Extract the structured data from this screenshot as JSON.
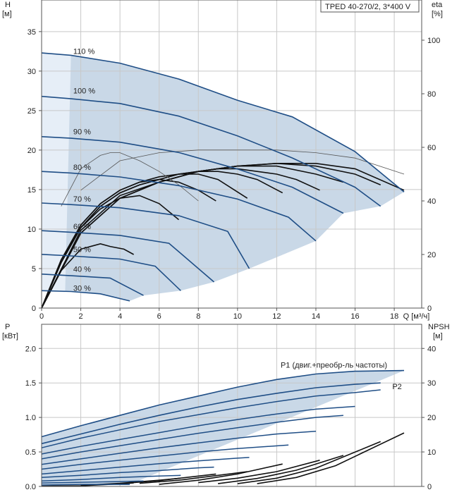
{
  "chart_data": [
    {
      "type": "line",
      "title": "TPED 40-270/2, 3*400 V",
      "xlabel": "Q [м³/ч]",
      "ylabel": "H",
      "ylabel_unit": "[м]",
      "y2label": "eta",
      "y2label_unit": "[%]",
      "xlim": [
        0,
        19.4
      ],
      "ylim": [
        0,
        39
      ],
      "y2lim": [
        0,
        115
      ],
      "x_ticks": [
        "0",
        "2",
        "4",
        "6",
        "8",
        "10",
        "12",
        "14",
        "16",
        "18"
      ],
      "y_ticks": [
        "0",
        "5",
        "10",
        "15",
        "20",
        "25",
        "30",
        "35"
      ],
      "y2_ticks": [
        "0",
        "20",
        "40",
        "60",
        "80",
        "100"
      ],
      "grid": true,
      "speed_curves": [
        {
          "name": "110 %",
          "label_pos": [
            1.4,
            32.0
          ],
          "x": [
            0,
            1.5,
            4,
            7,
            10,
            12.8,
            16,
            18.5
          ],
          "y": [
            32.3,
            32.0,
            31.0,
            29.0,
            26.3,
            24.2,
            19.8,
            14.7
          ]
        },
        {
          "name": "100 %",
          "label_pos": [
            1.4,
            27.0
          ],
          "x": [
            0,
            1.5,
            4,
            7,
            10,
            12.8,
            16,
            17.3
          ],
          "y": [
            26.8,
            26.5,
            25.9,
            24.3,
            21.8,
            19.0,
            15.3,
            12.9
          ]
        },
        {
          "name": "90 %",
          "label_pos": [
            1.4,
            21.8
          ],
          "x": [
            0,
            1.5,
            4,
            7,
            10,
            12.8,
            15.4
          ],
          "y": [
            21.7,
            21.5,
            21.0,
            19.7,
            17.6,
            15.3,
            12.0
          ]
        },
        {
          "name": "80 %",
          "label_pos": [
            1.4,
            17.3
          ],
          "x": [
            0,
            1.5,
            4,
            7,
            10,
            12.6,
            14.0
          ],
          "y": [
            17.3,
            17.1,
            16.6,
            15.5,
            13.8,
            11.5,
            8.5
          ]
        },
        {
          "name": "70 %",
          "label_pos": [
            1.4,
            13.3
          ],
          "x": [
            0,
            1.5,
            4,
            7,
            9.5,
            10.6
          ],
          "y": [
            13.3,
            13.1,
            12.7,
            11.7,
            9.7,
            5.0
          ]
        },
        {
          "name": "60 %",
          "label_pos": [
            1.4,
            9.8
          ],
          "x": [
            0,
            1.5,
            4,
            6.5,
            8.8
          ],
          "y": [
            9.8,
            9.6,
            9.2,
            8.2,
            3.3
          ]
        },
        {
          "name": "50 %",
          "label_pos": [
            1.4,
            6.9
          ],
          "x": [
            0,
            1.5,
            4,
            5.8,
            7.1
          ],
          "y": [
            6.8,
            6.6,
            6.2,
            5.3,
            2.2
          ]
        },
        {
          "name": "40 %",
          "label_pos": [
            1.4,
            4.4
          ],
          "x": [
            0,
            1.5,
            3.5,
            5.2
          ],
          "y": [
            4.3,
            4.1,
            3.8,
            1.6
          ]
        },
        {
          "name": "30 %",
          "label_pos": [
            1.4,
            2.0
          ],
          "x": [
            0,
            1.5,
            3.0,
            4.5
          ],
          "y": [
            2.2,
            2.1,
            1.8,
            0.9
          ]
        }
      ],
      "eta_curves": [
        {
          "x": [
            0,
            1,
            2,
            3,
            3.5,
            4.2,
            4.7
          ],
          "y2": [
            0,
            14,
            22,
            24,
            23,
            22,
            20
          ]
        },
        {
          "x": [
            0,
            1,
            2,
            3,
            4,
            5,
            6,
            7.0
          ],
          "y2": [
            0,
            18,
            30,
            37,
            41,
            42,
            39,
            33
          ]
        },
        {
          "x": [
            0,
            1,
            2,
            3,
            4,
            5,
            6,
            7,
            8,
            8.9
          ],
          "y2": [
            0,
            18,
            31,
            39,
            44,
            47,
            48,
            47,
            44,
            40
          ]
        },
        {
          "x": [
            0,
            1,
            2,
            3,
            4,
            5,
            6,
            7,
            8,
            9,
            10.5
          ],
          "y2": [
            0,
            18,
            31,
            39,
            44,
            47,
            49,
            50,
            50,
            48,
            41
          ]
        },
        {
          "x": [
            0,
            1,
            2,
            3,
            4,
            5,
            6,
            7,
            8,
            9,
            10,
            11,
            12.3
          ],
          "y2": [
            0,
            17,
            30,
            38,
            43,
            46,
            48,
            50,
            51,
            51,
            50,
            48,
            43
          ]
        },
        {
          "x": [
            0,
            1,
            2,
            3,
            4,
            5,
            6,
            7,
            8,
            9,
            10,
            11,
            12,
            13,
            14.2
          ],
          "y2": [
            0,
            17,
            30,
            38,
            43,
            46,
            48,
            50,
            51,
            52,
            52,
            51,
            50,
            48,
            44
          ]
        },
        {
          "x": [
            0,
            2,
            4,
            6,
            8,
            10,
            12,
            14,
            15.4
          ],
          "y2": [
            0,
            29,
            42,
            47,
            51,
            53,
            53,
            50,
            47
          ]
        },
        {
          "x": [
            0,
            2,
            4,
            6,
            8,
            10,
            12,
            14,
            16,
            17.3
          ],
          "y2": [
            0,
            28,
            41,
            47,
            51,
            53,
            54,
            53,
            50,
            46
          ]
        },
        {
          "x": [
            0,
            2,
            4,
            6,
            8,
            10,
            12,
            14,
            16,
            18.5
          ],
          "y2": [
            0,
            28,
            41,
            47,
            51,
            53,
            54,
            54,
            52,
            44
          ]
        },
        {
          "x": [
            1,
            2,
            3,
            3.5,
            4,
            5,
            6,
            7,
            8
          ],
          "y2": [
            38,
            52,
            57,
            58,
            58,
            55,
            51,
            46,
            40
          ]
        },
        {
          "x": [
            2,
            4,
            6,
            8,
            10,
            12,
            14,
            16,
            18.5
          ],
          "y2": [
            44,
            55,
            58,
            59,
            59,
            59,
            58,
            56,
            50
          ]
        }
      ]
    },
    {
      "type": "line",
      "xlabel": "",
      "ylabel": "P",
      "ylabel_unit": "[кВт]",
      "y2label": "NPSH",
      "y2label_unit": "[м]",
      "xlim": [
        0,
        19.4
      ],
      "ylim": [
        0,
        2.35
      ],
      "y2lim": [
        0,
        47
      ],
      "y_ticks": [
        "0.0",
        "0.5",
        "1.0",
        "1.5",
        "2.0"
      ],
      "y2_ticks": [
        "0",
        "10",
        "20",
        "30",
        "40"
      ],
      "grid": true,
      "annotations": [
        "P1 (двиг.+преобр-ль частоты)",
        "P2"
      ],
      "power_curves": [
        {
          "role": "P1",
          "x": [
            0,
            2,
            4,
            6,
            8,
            10,
            12,
            14,
            16,
            18.5
          ],
          "y": [
            0.72,
            0.88,
            1.03,
            1.18,
            1.31,
            1.44,
            1.55,
            1.63,
            1.67,
            1.68
          ]
        },
        {
          "role": "P2",
          "x": [
            0,
            2,
            4,
            6,
            8,
            10,
            12,
            14,
            16,
            17.3
          ],
          "y": [
            0.62,
            0.76,
            0.9,
            1.03,
            1.15,
            1.26,
            1.35,
            1.43,
            1.48,
            1.5
          ]
        },
        {
          "x": [
            0,
            2,
            4,
            6,
            8,
            10,
            12,
            14,
            16,
            17.3
          ],
          "y": [
            0.56,
            0.7,
            0.82,
            0.94,
            1.04,
            1.14,
            1.23,
            1.31,
            1.36,
            1.4
          ]
        },
        {
          "x": [
            0,
            2,
            4,
            6,
            8,
            10,
            12,
            14,
            16.0
          ],
          "y": [
            0.47,
            0.58,
            0.68,
            0.78,
            0.88,
            0.97,
            1.05,
            1.12,
            1.16
          ]
        },
        {
          "x": [
            0,
            2,
            4,
            6,
            8,
            10,
            12,
            14,
            15.4
          ],
          "y": [
            0.4,
            0.5,
            0.59,
            0.68,
            0.77,
            0.85,
            0.93,
            1.0,
            1.03
          ]
        },
        {
          "x": [
            0,
            2,
            4,
            6,
            8,
            10,
            12,
            14.0
          ],
          "y": [
            0.32,
            0.4,
            0.48,
            0.56,
            0.63,
            0.7,
            0.76,
            0.8
          ]
        },
        {
          "x": [
            0,
            2,
            4,
            6,
            8,
            10,
            12.6
          ],
          "y": [
            0.25,
            0.32,
            0.38,
            0.44,
            0.5,
            0.55,
            0.6
          ]
        },
        {
          "x": [
            0,
            2,
            4,
            6,
            8,
            10,
            10.6
          ],
          "y": [
            0.18,
            0.23,
            0.28,
            0.33,
            0.37,
            0.41,
            0.42
          ]
        },
        {
          "x": [
            0,
            2,
            4,
            6,
            8,
            8.8
          ],
          "y": [
            0.13,
            0.16,
            0.2,
            0.23,
            0.27,
            0.28
          ]
        },
        {
          "x": [
            0,
            2,
            4,
            6,
            7.1
          ],
          "y": [
            0.08,
            0.1,
            0.13,
            0.15,
            0.16
          ]
        },
        {
          "x": [
            0,
            2,
            4,
            5.2
          ],
          "y": [
            0.05,
            0.06,
            0.07,
            0.08
          ]
        },
        {
          "x": [
            0,
            2,
            4.5
          ],
          "y": [
            0.02,
            0.03,
            0.03
          ]
        }
      ],
      "npsh_curves": [
        {
          "x": [
            0,
            2,
            3.5,
            4.7
          ],
          "y2": [
            0.1,
            0.2,
            0.6,
            1.0
          ]
        },
        {
          "x": [
            2,
            4,
            6,
            7.1
          ],
          "y2": [
            0.3,
            0.9,
            1.8,
            2.4
          ]
        },
        {
          "x": [
            4,
            6,
            8,
            8.9
          ],
          "y2": [
            0.8,
            1.7,
            3.0,
            3.6
          ]
        },
        {
          "x": [
            5,
            7,
            9,
            10.5
          ],
          "y2": [
            0.9,
            1.8,
            3.2,
            4.3
          ]
        },
        {
          "x": [
            6,
            8,
            10,
            12.3
          ],
          "y2": [
            0.6,
            1.8,
            3.6,
            6.5
          ]
        },
        {
          "x": [
            8,
            10,
            12,
            14.2
          ],
          "y2": [
            1.1,
            2.4,
            4.3,
            7.6
          ]
        },
        {
          "x": [
            9,
            11,
            13,
            15.4
          ],
          "y2": [
            0.8,
            2.3,
            4.7,
            9.0
          ]
        },
        {
          "x": [
            10,
            12,
            14,
            17.3
          ],
          "y2": [
            0.8,
            2.4,
            5.3,
            13.0
          ]
        },
        {
          "x": [
            11,
            13,
            15,
            18.5
          ],
          "y2": [
            0.8,
            2.6,
            6.0,
            15.5
          ]
        }
      ]
    }
  ]
}
